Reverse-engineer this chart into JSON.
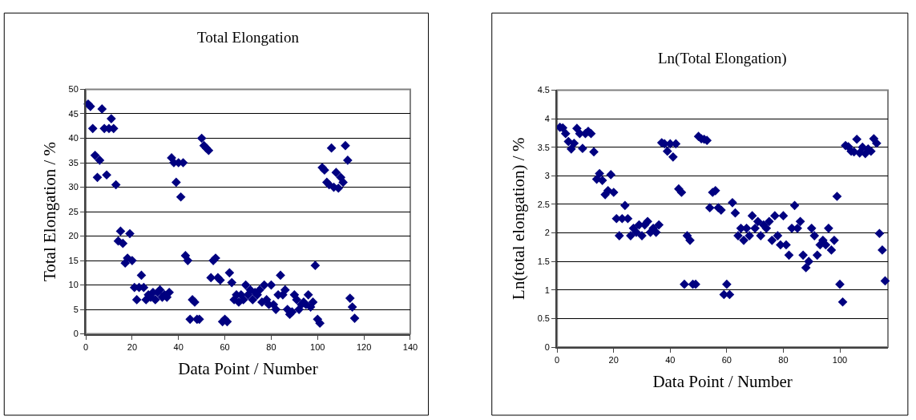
{
  "chart_data": [
    {
      "type": "scatter",
      "title": "Total Elongation",
      "xlabel": "Data Point / Number",
      "ylabel": "Total Elongation / %",
      "color": "#000080",
      "marker": "diamond",
      "grid": "y",
      "xlim": [
        0,
        140
      ],
      "xticks": [
        0,
        20,
        40,
        60,
        80,
        100,
        120,
        140
      ],
      "ylim": [
        0,
        50
      ],
      "yticks": [
        0,
        5,
        10,
        15,
        20,
        25,
        30,
        35,
        40,
        45,
        50
      ],
      "x": [
        1,
        2,
        3,
        4,
        5,
        6,
        7,
        8,
        9,
        10,
        11,
        12,
        13,
        14,
        15,
        16,
        17,
        18,
        19,
        20,
        21,
        22,
        23,
        24,
        25,
        26,
        27,
        28,
        29,
        30,
        31,
        32,
        33,
        34,
        35,
        36,
        37,
        38,
        39,
        40,
        41,
        42,
        43,
        44,
        45,
        46,
        47,
        48,
        49,
        50,
        51,
        52,
        53,
        54,
        55,
        56,
        57,
        58,
        59,
        60,
        61,
        62,
        63,
        64,
        65,
        66,
        67,
        68,
        69,
        70,
        71,
        72,
        73,
        74,
        75,
        76,
        77,
        78,
        79,
        80,
        81,
        82,
        83,
        84,
        85,
        86,
        87,
        88,
        89,
        90,
        91,
        92,
        93,
        94,
        95,
        96,
        97,
        98,
        99,
        100,
        101,
        102,
        103,
        104,
        105,
        106,
        107,
        108,
        109,
        110,
        111,
        112,
        113,
        114,
        115,
        116
      ],
      "values": [
        47,
        46.5,
        42,
        36.5,
        32,
        35.5,
        46,
        42,
        32.5,
        42,
        44,
        42,
        30.5,
        19,
        21,
        18.5,
        14.5,
        15.5,
        20.5,
        15,
        9.5,
        7,
        9.5,
        12,
        9.5,
        7,
        8,
        7.5,
        8.5,
        7,
        8.5,
        9,
        7.5,
        8,
        7.5,
        8.5,
        36,
        35,
        31,
        35,
        28,
        35,
        16,
        15,
        3,
        7,
        6.5,
        3,
        3,
        40,
        38.5,
        38,
        37.5,
        11.5,
        15,
        15.5,
        11.5,
        11,
        2.5,
        3,
        2.5,
        12.5,
        10.5,
        7,
        8,
        6.5,
        8,
        7,
        10,
        8,
        9,
        7,
        8.5,
        8,
        9,
        6.5,
        10,
        7,
        6,
        10,
        6,
        5,
        8,
        12,
        8,
        9,
        5,
        4,
        4.5,
        8,
        7,
        5,
        6,
        6.5,
        6,
        8,
        5.5,
        6.5,
        14,
        3,
        2.2,
        34,
        33.5,
        31,
        30.5,
        38,
        30,
        33,
        29.8,
        32,
        31,
        38.5,
        35.5,
        7.3,
        5.5,
        3.2
      ]
    },
    {
      "type": "scatter",
      "title": "Ln(Total Elongation)",
      "xlabel": "Data Point / Number",
      "ylabel": "Ln(total elongation) / %",
      "color": "#000080",
      "marker": "diamond",
      "grid": "y",
      "xlim": [
        0,
        117
      ],
      "xticks": [
        0,
        20,
        40,
        60,
        80,
        100
      ],
      "ylim": [
        0,
        4.5
      ],
      "yticks": [
        0,
        0.5,
        1,
        1.5,
        2,
        2.5,
        3,
        3.5,
        4,
        4.5
      ],
      "x": [
        1,
        2,
        3,
        4,
        5,
        6,
        7,
        8,
        9,
        10,
        11,
        12,
        13,
        14,
        15,
        16,
        17,
        18,
        19,
        20,
        21,
        22,
        23,
        24,
        25,
        26,
        27,
        28,
        29,
        30,
        31,
        32,
        33,
        34,
        35,
        36,
        37,
        38,
        39,
        40,
        41,
        42,
        43,
        44,
        45,
        46,
        47,
        48,
        49,
        50,
        51,
        52,
        53,
        54,
        55,
        56,
        57,
        58,
        59,
        60,
        61,
        62,
        63,
        64,
        65,
        66,
        67,
        68,
        69,
        70,
        71,
        72,
        73,
        74,
        75,
        76,
        77,
        78,
        79,
        80,
        81,
        82,
        83,
        84,
        85,
        86,
        87,
        88,
        89,
        90,
        91,
        92,
        93,
        94,
        95,
        96,
        97,
        98,
        99,
        100,
        101,
        102,
        103,
        104,
        105,
        106,
        107,
        108,
        109,
        110,
        111,
        112,
        113,
        114,
        115,
        116
      ],
      "values": [
        3.85,
        3.84,
        3.74,
        3.6,
        3.47,
        3.57,
        3.83,
        3.74,
        3.48,
        3.74,
        3.78,
        3.74,
        3.42,
        2.94,
        3.04,
        2.92,
        2.67,
        2.74,
        3.02,
        2.71,
        2.25,
        1.95,
        2.25,
        2.48,
        2.25,
        1.95,
        2.08,
        2.01,
        2.14,
        1.95,
        2.14,
        2.2,
        2.01,
        2.08,
        2.01,
        2.14,
        3.58,
        3.56,
        3.43,
        3.56,
        3.33,
        3.56,
        2.77,
        2.71,
        1.1,
        1.95,
        1.87,
        1.1,
        1.1,
        3.69,
        3.65,
        3.64,
        3.62,
        2.44,
        2.71,
        2.74,
        2.44,
        2.4,
        0.92,
        1.1,
        0.92,
        2.53,
        2.35,
        1.95,
        2.08,
        1.87,
        2.08,
        1.95,
        2.3,
        2.08,
        2.2,
        1.95,
        2.14,
        2.08,
        2.2,
        1.87,
        2.3,
        1.95,
        1.79,
        2.3,
        1.79,
        1.61,
        2.08,
        2.48,
        2.08,
        2.2,
        1.61,
        1.39,
        1.5,
        2.08,
        1.95,
        1.61,
        1.79,
        1.87,
        1.79,
        2.08,
        1.7,
        1.87,
        2.64,
        1.1,
        0.79,
        3.53,
        3.51,
        3.43,
        3.42,
        3.64,
        3.4,
        3.5,
        3.39,
        3.47,
        3.43,
        3.65,
        3.57,
        1.99,
        1.7,
        1.16
      ]
    }
  ]
}
